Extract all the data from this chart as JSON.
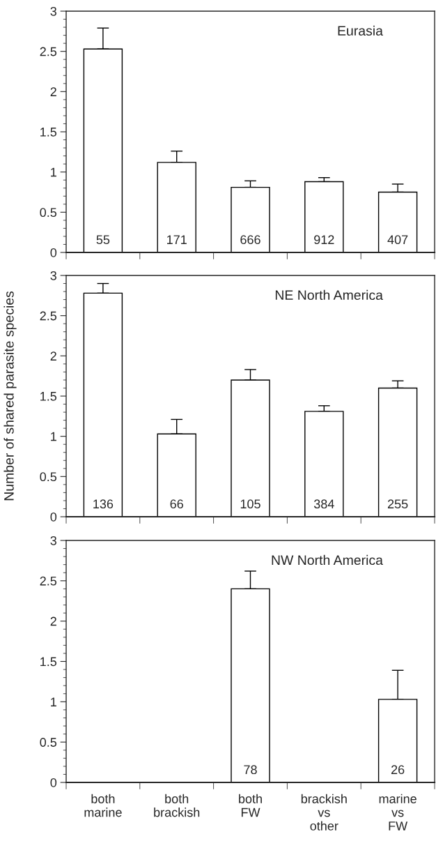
{
  "chart_data": [
    {
      "type": "bar",
      "title": "Eurasia",
      "categories": [
        "both marine",
        "both brackish",
        "both FW",
        "brackish vs other",
        "marine vs FW"
      ],
      "values": [
        2.53,
        1.12,
        0.81,
        0.88,
        0.75
      ],
      "color": "#ffffff",
      "errors": [
        [
          2.53,
          2.79
        ],
        [
          1.12,
          1.26
        ],
        [
          0.81,
          0.89
        ],
        [
          0.88,
          0.93
        ],
        [
          0.75,
          0.85
        ]
      ],
      "annotations": [
        {
          "text": "55",
          "x": "both marine",
          "y": 0
        },
        {
          "text": "171",
          "x": "both brackish",
          "y": 0
        },
        {
          "text": "666",
          "x": "both FW",
          "y": 0
        },
        {
          "text": "912",
          "x": "brackish vs other",
          "y": 0
        },
        {
          "text": "407",
          "x": "marine vs FW",
          "y": 0
        }
      ],
      "ylim": [
        0,
        3
      ],
      "yticks": [
        0,
        0.5,
        1,
        1.5,
        2,
        2.5,
        3
      ],
      "tick_labels": "y",
      "grid": false,
      "legend": false
    },
    {
      "type": "bar",
      "title": "NE North America",
      "ylabel": "Number of shared parasite species",
      "categories": [
        "both marine",
        "both brackish",
        "both FW",
        "brackish vs other",
        "marine vs FW"
      ],
      "values": [
        2.78,
        1.03,
        1.7,
        1.31,
        1.6
      ],
      "color": "#ffffff",
      "errors": [
        [
          2.78,
          2.9
        ],
        [
          1.03,
          1.21
        ],
        [
          1.7,
          1.83
        ],
        [
          1.31,
          1.38
        ],
        [
          1.6,
          1.69
        ]
      ],
      "annotations": [
        {
          "text": "136",
          "x": "both marine",
          "y": 0
        },
        {
          "text": "66",
          "x": "both brackish",
          "y": 0
        },
        {
          "text": "105",
          "x": "both FW",
          "y": 0
        },
        {
          "text": "384",
          "x": "brackish vs other",
          "y": 0
        },
        {
          "text": "255",
          "x": "marine vs FW",
          "y": 0
        }
      ],
      "ylim": [
        0,
        3
      ],
      "yticks": [
        0,
        0.5,
        1,
        1.5,
        2,
        2.5,
        3
      ],
      "tick_labels": "y",
      "grid": false,
      "legend": false
    },
    {
      "type": "bar",
      "title": "NW North America",
      "categories": [
        "both marine",
        "both brackish",
        "both FW",
        "brackish vs other",
        "marine vs FW"
      ],
      "values": [
        null,
        null,
        2.4,
        null,
        1.03
      ],
      "color": "#ffffff",
      "errors": [
        null,
        null,
        [
          2.4,
          2.62
        ],
        null,
        [
          1.03,
          1.39
        ]
      ],
      "annotations": [
        {
          "text": "78",
          "x": "both FW",
          "y": 0
        },
        {
          "text": "26",
          "x": "marine vs FW",
          "y": 0
        }
      ],
      "ylim": [
        0,
        3
      ],
      "yticks": [
        0,
        0.5,
        1,
        1.5,
        2,
        2.5,
        3
      ],
      "grid": false,
      "legend": false
    }
  ]
}
